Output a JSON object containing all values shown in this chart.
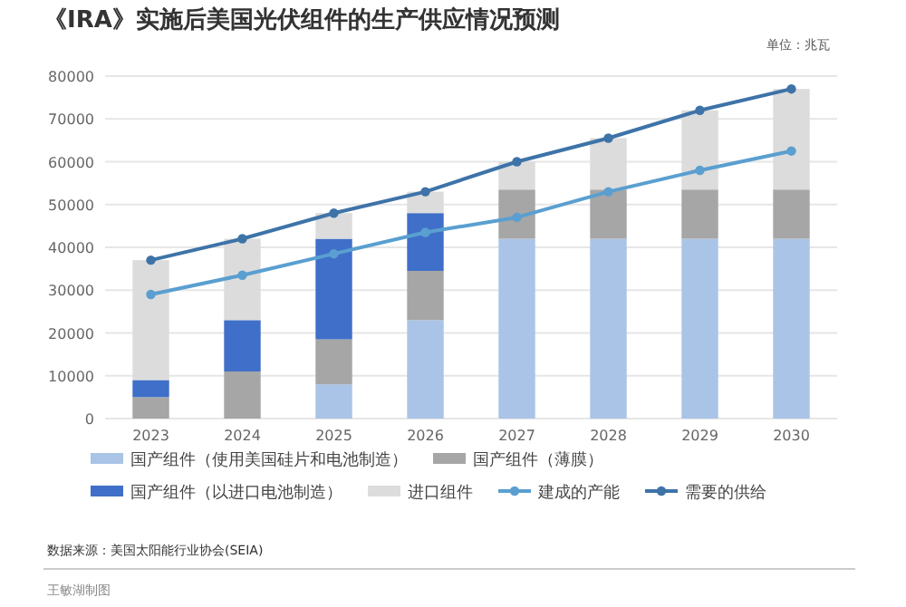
{
  "chart_data": {
    "type": "bar",
    "title": "《IRA》实施后美国光伏组件的生产供应情况预测",
    "categories": [
      "2023",
      "2024",
      "2025",
      "2026",
      "2027",
      "2028",
      "2029",
      "2030"
    ],
    "stacked": true,
    "series": [
      {
        "name": "国产组件（使用美国硅片和电池制造）",
        "color": "#a9c4e6",
        "values": [
          0,
          0,
          8000,
          23000,
          42000,
          42000,
          42000,
          42000
        ]
      },
      {
        "name": "国产组件（薄膜）",
        "color": "#a6a6a6",
        "values": [
          5000,
          11000,
          10500,
          11500,
          11500,
          11500,
          11500,
          11500
        ]
      },
      {
        "name": "国产组件（以进口电池制造）",
        "color": "#3f6fc8",
        "values": [
          4000,
          12000,
          23500,
          13500,
          0,
          0,
          0,
          0
        ]
      },
      {
        "name": "进口组件",
        "color": "#dcdcdc",
        "values": [
          28000,
          19000,
          6000,
          5000,
          6500,
          12000,
          18500,
          23500
        ]
      },
      {
        "name": "建成的产能",
        "type": "line",
        "color": "#5a9fd0",
        "values": [
          29000,
          33500,
          38500,
          43500,
          47000,
          53000,
          58000,
          62500
        ]
      },
      {
        "name": "需要的供给",
        "type": "line",
        "color": "#3e73a8",
        "values": [
          37000,
          42000,
          48000,
          53000,
          60000,
          65500,
          72000,
          77000
        ]
      }
    ],
    "ylim": [
      0,
      80000
    ],
    "yticks": [
      0,
      10000,
      20000,
      30000,
      40000,
      50000,
      60000,
      70000,
      80000
    ],
    "grid": "y",
    "legend": "bottom",
    "marker": "circle",
    "annotations": [
      "单位：兆瓦",
      "数据来源：美国太阳能行业协会(SEIA)",
      "王敏湖制图"
    ]
  }
}
